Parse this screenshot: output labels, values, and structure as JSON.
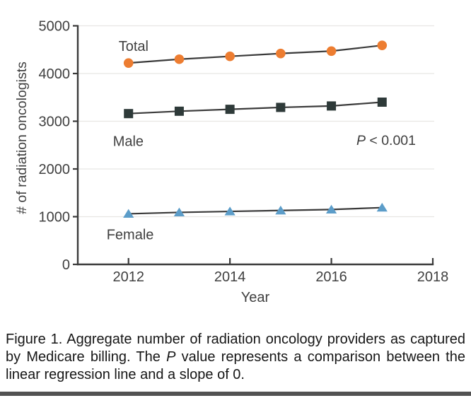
{
  "chart_data": {
    "type": "line",
    "title": "",
    "xlabel": "Year",
    "ylabel": "# of radiation oncologists",
    "x": [
      2012,
      2013,
      2014,
      2015,
      2016,
      2017
    ],
    "series": [
      {
        "name": "Total",
        "marker": "circle",
        "color": "#ed7d31",
        "values": [
          4220,
          4300,
          4360,
          4420,
          4470,
          4590
        ],
        "label_dx": -14,
        "label_dy": -17
      },
      {
        "name": "Male",
        "marker": "square",
        "color": "#2e3a39",
        "values": [
          3160,
          3210,
          3250,
          3290,
          3320,
          3400
        ],
        "label_dx": -22,
        "label_dy": 46
      },
      {
        "name": "Female",
        "marker": "triangle",
        "color": "#5c9dc9",
        "values": [
          1060,
          1090,
          1110,
          1130,
          1150,
          1190
        ],
        "label_dx": -31,
        "label_dy": 36
      }
    ],
    "xlim": [
      2011,
      2018
    ],
    "ylim": [
      0,
      5000
    ],
    "xticks": [
      2012,
      2014,
      2016,
      2018
    ],
    "yticks": [
      0,
      1000,
      2000,
      3000,
      4000,
      5000
    ],
    "grid": "horizontal",
    "line_color": "#3a3a3a",
    "grid_color": "#e8e6e3",
    "text_color": "#404040",
    "legend_position": "inline-labels",
    "p_value": {
      "italic": "P",
      "rest": " < 0.001"
    }
  },
  "caption": {
    "part1": "Figure 1. Aggregate number of radiation oncology providers as captured by Medicare billing. The ",
    "italic": "P",
    "part2": " value represents a comparison between the linear regression line and a slope of 0."
  }
}
